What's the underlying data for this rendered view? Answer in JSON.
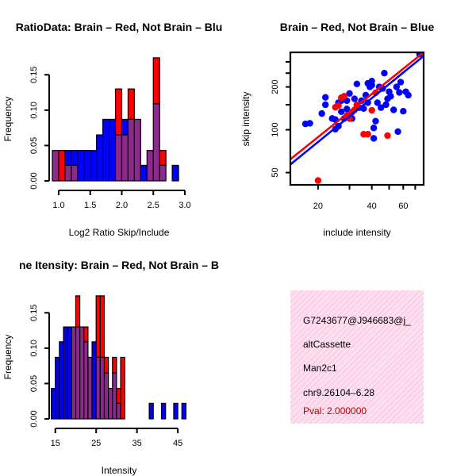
{
  "colors": {
    "red": "#ff0000",
    "blue": "#0000ff",
    "purple": "#8b2a8b",
    "panel": "#fde0ef"
  },
  "chart_data": [
    {
      "type": "bar",
      "subtype": "overlaid-histogram",
      "title": "RatioData: Brain – Red, Not Brain – Blu",
      "xlabel": "Log2 Ratio Skip/Include",
      "ylabel": "Frequency",
      "xlim": [
        0.85,
        3.05
      ],
      "ylim": [
        0,
        0.175
      ],
      "x_ticks": [
        "1.0",
        "1.5",
        "2.0",
        "2.5",
        "3.0"
      ],
      "y_ticks": [
        "0.00",
        "0.05",
        "0.10",
        "0.15"
      ],
      "bin_edges": [
        0.9,
        1.0,
        1.1,
        1.2,
        1.3,
        1.4,
        1.5,
        1.6,
        1.7,
        1.8,
        1.9,
        2.0,
        2.1,
        2.2,
        2.3,
        2.4,
        2.5,
        2.6,
        2.7,
        2.8,
        2.9,
        3.0
      ],
      "series": [
        {
          "name": "Brain",
          "color": "red",
          "values": [
            0.043,
            0.043,
            0.022,
            0.022,
            0,
            0,
            0,
            0,
            0,
            0,
            0.13,
            0.065,
            0.13,
            0.087,
            0,
            0.043,
            0.174,
            0.043,
            0,
            0,
            0
          ]
        },
        {
          "name": "Not Brain",
          "color": "blue",
          "values": [
            0.043,
            0,
            0.043,
            0.043,
            0.043,
            0.043,
            0.043,
            0.065,
            0.087,
            0.087,
            0.065,
            0.087,
            0.087,
            0.087,
            0.022,
            0.043,
            0.109,
            0.022,
            0,
            0.022,
            0
          ]
        }
      ]
    },
    {
      "type": "scatter",
      "title": "Brain – Red, Not Brain – Blue",
      "xlabel": "include intensity",
      "ylabel": "skip intensity",
      "x_scale": "log",
      "y_scale": "log",
      "xlim": [
        14,
        78
      ],
      "ylim": [
        41,
        350
      ],
      "x_ticks": [
        "20",
        "40",
        "60"
      ],
      "y_ticks": [
        "50",
        "100",
        "200"
      ],
      "fit_lines": [
        {
          "name": "Brain",
          "color": "red",
          "x": [
            14,
            78
          ],
          "y": [
            62,
            350
          ]
        },
        {
          "name": "Not Brain",
          "color": "blue",
          "x": [
            14,
            78
          ],
          "y": [
            57,
            330
          ]
        }
      ],
      "series": [
        {
          "name": "Brain",
          "color": "red",
          "points": [
            [
              20,
              44
            ],
            [
              25,
              144
            ],
            [
              26,
              148
            ],
            [
              27,
              168
            ],
            [
              28,
              172
            ],
            [
              29,
              126
            ],
            [
              30,
              120
            ],
            [
              31,
              133
            ],
            [
              32,
              138
            ],
            [
              33,
              150
            ],
            [
              36,
              93
            ],
            [
              38,
              93
            ],
            [
              40,
              137
            ],
            [
              42,
              182
            ],
            [
              49,
              91
            ]
          ]
        },
        {
          "name": "Not Brain",
          "color": "blue",
          "points": [
            [
              17,
              110
            ],
            [
              18,
              111
            ],
            [
              21,
              130
            ],
            [
              22,
              169
            ],
            [
              22,
              150
            ],
            [
              24,
              120
            ],
            [
              25,
              101
            ],
            [
              25,
              118
            ],
            [
              26,
              106
            ],
            [
              26,
              155
            ],
            [
              27,
              134
            ],
            [
              27,
              160
            ],
            [
              28,
              120
            ],
            [
              29,
              160
            ],
            [
              29,
              140
            ],
            [
              30,
              180
            ],
            [
              31,
              120
            ],
            [
              32,
              165
            ],
            [
              33,
              210
            ],
            [
              33,
              149
            ],
            [
              34,
              143
            ],
            [
              35,
              160
            ],
            [
              36,
              141
            ],
            [
              37,
              175
            ],
            [
              38,
              155
            ],
            [
              38,
              212
            ],
            [
              39,
              200
            ],
            [
              40,
              206
            ],
            [
              40,
              220
            ],
            [
              41,
              103
            ],
            [
              41,
              87
            ],
            [
              42,
              115
            ],
            [
              43,
              155
            ],
            [
              44,
              200
            ],
            [
              45,
              143
            ],
            [
              46,
              195
            ],
            [
              47,
              250
            ],
            [
              48,
              150
            ],
            [
              49,
              165
            ],
            [
              50,
              185
            ],
            [
              51,
              172
            ],
            [
              53,
              138
            ],
            [
              55,
              200
            ],
            [
              56,
              97
            ],
            [
              57,
              183
            ],
            [
              58,
              216
            ],
            [
              60,
              135
            ],
            [
              62,
              185
            ],
            [
              64,
              175
            ],
            [
              74,
              340
            ]
          ]
        }
      ]
    },
    {
      "type": "bar",
      "subtype": "overlaid-histogram",
      "title": "ne Itensity: Brain – Red, Not Brain – B",
      "xlabel": "Intensity",
      "ylabel": "Frequency",
      "xlim": [
        13.5,
        47.5
      ],
      "ylim": [
        0,
        0.175
      ],
      "x_ticks": [
        "15",
        "25",
        "35",
        "45"
      ],
      "y_ticks": [
        "0.00",
        "0.05",
        "0.10",
        "0.15"
      ],
      "bin_edges": [
        14,
        15,
        16,
        17,
        18,
        19,
        20,
        21,
        22,
        23,
        24,
        25,
        26,
        27,
        28,
        29,
        30,
        31,
        32,
        33,
        34,
        35,
        36,
        37,
        38,
        39,
        40,
        41,
        42,
        43,
        44,
        45,
        46,
        47
      ],
      "series": [
        {
          "name": "Brain",
          "color": "red",
          "values": [
            0,
            0,
            0,
            0,
            0,
            0.13,
            0.174,
            0.13,
            0.13,
            0.087,
            0,
            0.174,
            0.174,
            0.087,
            0.043,
            0.087,
            0.043,
            0.087,
            0,
            0,
            0,
            0,
            0,
            0,
            0,
            0,
            0,
            0,
            0,
            0,
            0,
            0,
            0
          ]
        },
        {
          "name": "Not Brain",
          "color": "blue",
          "values": [
            0.043,
            0.087,
            0.109,
            0.13,
            0.13,
            0.13,
            0.13,
            0.13,
            0.109,
            0.087,
            0.109,
            0.087,
            0.087,
            0.065,
            0.043,
            0.065,
            0.022,
            0,
            0,
            0,
            0,
            0,
            0,
            0,
            0.022,
            0,
            0,
            0.022,
            0,
            0,
            0.022,
            0,
            0.022
          ]
        }
      ]
    }
  ],
  "info": {
    "id": "G7243677@J946683@j_",
    "event_type": "altCassette",
    "gene": "Man2c1",
    "location": "chr9.26104–6.28",
    "pval": "Pval: 2.000000"
  }
}
